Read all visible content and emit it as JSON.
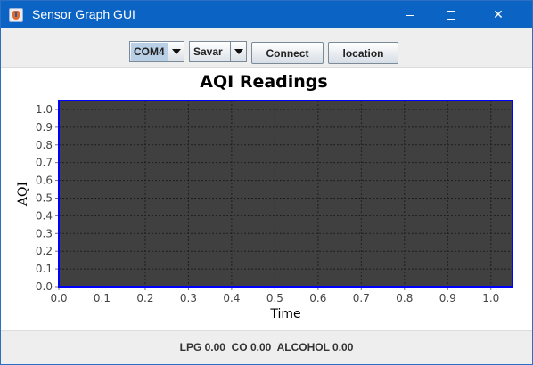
{
  "window": {
    "title": "Sensor Graph GUI",
    "icon": "java-cup-icon",
    "controls": [
      "minimize-icon",
      "maximize-icon",
      "close-icon"
    ]
  },
  "toolbar": {
    "port_select": {
      "value": "COM4"
    },
    "location_select": {
      "value": "Savar"
    },
    "connect_label": "Connect",
    "location_label": "location"
  },
  "chart_data": {
    "type": "line",
    "title": "AQI Readings",
    "xlabel": "Time",
    "ylabel": "AQI",
    "xlim": [
      0.0,
      1.05
    ],
    "ylim": [
      0.0,
      1.05
    ],
    "xticks": [
      "0.0",
      "0.1",
      "0.2",
      "0.3",
      "0.4",
      "0.5",
      "0.6",
      "0.7",
      "0.8",
      "0.9",
      "1.0"
    ],
    "yticks": [
      "0.0",
      "0.1",
      "0.2",
      "0.3",
      "0.4",
      "0.5",
      "0.6",
      "0.7",
      "0.8",
      "0.9",
      "1.0"
    ],
    "series": [],
    "grid": true,
    "plot_background": "#404040",
    "plot_border": "#0000ff",
    "gridline_color": "#1e1e1e"
  },
  "status": {
    "lpg": "LPG 0.00",
    "co": "CO 0.00",
    "alcohol": "ALCOHOL 0.00"
  },
  "colors": {
    "titlebar": "#0b63c3",
    "toolbar": "#eeeeee"
  }
}
